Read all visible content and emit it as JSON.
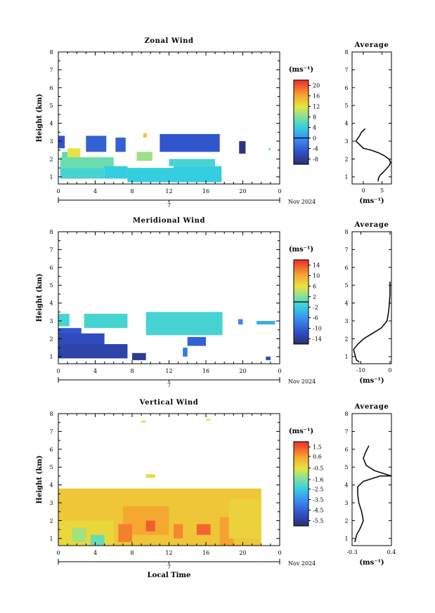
{
  "chart_data": [
    {
      "type": "heatmap",
      "title": "Zonal Wind",
      "ylabel": "Height (km)",
      "xlabel": "",
      "x_ticks": [
        "0",
        "4",
        "8",
        "12",
        "16",
        "20",
        "0"
      ],
      "xlim": [
        0,
        24
      ],
      "y_ticks": [
        "1",
        "2",
        "3",
        "4",
        "5",
        "6",
        "7",
        "8"
      ],
      "ylim": [
        0.6,
        8.0
      ],
      "date_label": "7",
      "month_label": "Nov 2024",
      "colorbar": {
        "unit": "(ms⁻¹)",
        "ticks": [
          "-8",
          "-4",
          "0",
          "4",
          "8",
          "12",
          "16",
          "20"
        ],
        "range": [
          -10,
          22
        ],
        "marker": 0
      },
      "cells": [
        {
          "x0": 0.0,
          "x1": 0.7,
          "y0": 2.6,
          "y1": 3.3,
          "value": -5
        },
        {
          "x0": 3.0,
          "x1": 5.2,
          "y0": 2.4,
          "y1": 3.3,
          "value": -4
        },
        {
          "x0": 6.2,
          "x1": 7.3,
          "y0": 2.4,
          "y1": 3.2,
          "value": -4
        },
        {
          "x0": 11.0,
          "x1": 17.5,
          "y0": 2.4,
          "y1": 3.4,
          "value": -5
        },
        {
          "x0": 19.6,
          "x1": 20.3,
          "y0": 2.3,
          "y1": 3.0,
          "value": -9
        },
        {
          "x0": 9.2,
          "x1": 9.6,
          "y0": 3.2,
          "y1": 3.45,
          "value": 14
        },
        {
          "x0": 22.8,
          "x1": 23.0,
          "y0": 2.5,
          "y1": 2.6,
          "value": 5
        },
        {
          "x0": 0.4,
          "x1": 1.0,
          "y0": 2.0,
          "y1": 2.4,
          "value": 6
        },
        {
          "x0": 1.0,
          "x1": 2.4,
          "y0": 2.0,
          "y1": 2.6,
          "value": 12
        },
        {
          "x0": 0.2,
          "x1": 6.0,
          "y0": 1.5,
          "y1": 2.1,
          "value": 7
        },
        {
          "x0": 0.2,
          "x1": 5.0,
          "y0": 0.9,
          "y1": 1.5,
          "value": 5
        },
        {
          "x0": 5.0,
          "x1": 7.5,
          "y0": 0.9,
          "y1": 1.6,
          "value": 4
        },
        {
          "x0": 8.5,
          "x1": 10.2,
          "y0": 1.9,
          "y1": 2.4,
          "value": 9
        },
        {
          "x0": 7.5,
          "x1": 12.5,
          "y0": 0.7,
          "y1": 1.5,
          "value": 4
        },
        {
          "x0": 12.5,
          "x1": 17.7,
          "y0": 0.7,
          "y1": 1.6,
          "value": 4
        },
        {
          "x0": 12.0,
          "x1": 17.0,
          "y0": 1.6,
          "y1": 2.0,
          "value": 5
        }
      ],
      "profile": {
        "title": "Average",
        "xlabel": "(ms⁻¹)",
        "x_ticks": [
          "0",
          "5"
        ],
        "xlim": [
          -3,
          7.5
        ],
        "points": [
          [
            0.5,
            3.7
          ],
          [
            -0.5,
            3.5
          ],
          [
            -1,
            3.3
          ],
          [
            -2.0,
            3.0
          ],
          [
            -1.2,
            2.85
          ],
          [
            0,
            2.6
          ],
          [
            2,
            2.5
          ],
          [
            4,
            2.35
          ],
          [
            5.5,
            2.2
          ],
          [
            6.8,
            2.0
          ],
          [
            7.3,
            1.8
          ],
          [
            6.8,
            1.6
          ],
          [
            5.5,
            1.3
          ],
          [
            4.5,
            1.1
          ],
          [
            4.0,
            0.9
          ],
          [
            4.0,
            0.75
          ]
        ]
      }
    },
    {
      "type": "heatmap",
      "title": "Meridional Wind",
      "ylabel": "Height (km)",
      "xlabel": "",
      "x_ticks": [
        "0",
        "4",
        "8",
        "12",
        "16",
        "20",
        "0"
      ],
      "xlim": [
        0,
        24
      ],
      "y_ticks": [
        "1",
        "2",
        "3",
        "4",
        "5",
        "6",
        "7",
        "8"
      ],
      "ylim": [
        0.6,
        8.0
      ],
      "date_label": "7",
      "month_label": "Nov 2024",
      "colorbar": {
        "unit": "(ms⁻¹)",
        "ticks": [
          "-14",
          "-10",
          "-6",
          "-2",
          "2",
          "6",
          "10",
          "14"
        ],
        "range": [
          -16,
          16
        ],
        "marker": 0
      },
      "cells": [
        {
          "x0": 0.0,
          "x1": 1.2,
          "y0": 2.7,
          "y1": 3.4,
          "value": -1
        },
        {
          "x0": 2.8,
          "x1": 7.5,
          "y0": 2.6,
          "y1": 3.4,
          "value": -1
        },
        {
          "x0": 9.5,
          "x1": 17.8,
          "y0": 2.2,
          "y1": 3.5,
          "value": -1
        },
        {
          "x0": 0.0,
          "x1": 2.5,
          "y0": 2.2,
          "y1": 2.6,
          "value": -11
        },
        {
          "x0": 0.0,
          "x1": 5.0,
          "y0": 1.6,
          "y1": 2.3,
          "value": -12
        },
        {
          "x0": 0.0,
          "x1": 7.5,
          "y0": 0.9,
          "y1": 1.7,
          "value": -13
        },
        {
          "x0": 8.0,
          "x1": 9.5,
          "y0": 0.8,
          "y1": 1.2,
          "value": -14
        },
        {
          "x0": 13.5,
          "x1": 14.0,
          "y0": 1.0,
          "y1": 1.5,
          "value": -8
        },
        {
          "x0": 14.0,
          "x1": 16.0,
          "y0": 1.6,
          "y1": 2.1,
          "value": -10
        },
        {
          "x0": 19.5,
          "x1": 20.0,
          "y0": 2.8,
          "y1": 3.1,
          "value": -7
        },
        {
          "x0": 21.5,
          "x1": 23.5,
          "y0": 2.8,
          "y1": 3.0,
          "value": -4
        },
        {
          "x0": 22.5,
          "x1": 23.0,
          "y0": 0.8,
          "y1": 1.0,
          "value": -12
        }
      ],
      "profile": {
        "title": "Average",
        "xlabel": "(ms⁻¹)",
        "x_ticks": [
          "-10",
          "0"
        ],
        "xlim": [
          -13,
          0.5
        ],
        "points": [
          [
            0,
            5.2
          ],
          [
            0,
            4.5
          ],
          [
            -0.2,
            4.0
          ],
          [
            -0.5,
            3.5
          ],
          [
            -1,
            3.0
          ],
          [
            -3,
            2.6
          ],
          [
            -6,
            2.3
          ],
          [
            -9,
            2.0
          ],
          [
            -11,
            1.7
          ],
          [
            -12.5,
            1.4
          ],
          [
            -12,
            1.1
          ],
          [
            -11.5,
            0.8
          ],
          [
            -10.5,
            0.7
          ]
        ]
      }
    },
    {
      "type": "heatmap",
      "title": "Vertical Wind",
      "ylabel": "Height (km)",
      "xlabel": "Local Time",
      "x_ticks": [
        "0",
        "4",
        "8",
        "12",
        "16",
        "20",
        "0"
      ],
      "xlim": [
        0,
        24
      ],
      "y_ticks": [
        "1",
        "2",
        "3",
        "4",
        "5",
        "6",
        "7",
        "8"
      ],
      "ylim": [
        0.6,
        8.0
      ],
      "date_label": "7",
      "month_label": "Nov 2024",
      "colorbar": {
        "unit": "(ms⁻¹)",
        "ticks": [
          "1.5",
          "0.6",
          "-0.5",
          "-1.6",
          "-2.5",
          "-3.5",
          "-4.5",
          "-5.5"
        ],
        "range": [
          -6,
          2
        ],
        "marker": null
      },
      "cells": [
        {
          "x0": 0.0,
          "x1": 22.0,
          "y0": 0.6,
          "y1": 3.8,
          "value": 0.0
        },
        {
          "x0": 0.0,
          "x1": 6.0,
          "y0": 0.6,
          "y1": 2.0,
          "value": -0.3
        },
        {
          "x0": 7.0,
          "x1": 12.0,
          "y0": 1.2,
          "y1": 2.8,
          "value": 0.5
        },
        {
          "x0": 1.5,
          "x1": 3.0,
          "y0": 0.8,
          "y1": 1.6,
          "value": -1.2
        },
        {
          "x0": 3.5,
          "x1": 5.0,
          "y0": 0.6,
          "y1": 1.2,
          "value": -1.8
        },
        {
          "x0": 6.5,
          "x1": 8.0,
          "y0": 0.8,
          "y1": 1.8,
          "value": 1.0
        },
        {
          "x0": 9.5,
          "x1": 10.5,
          "y0": 1.4,
          "y1": 2.0,
          "value": 1.4
        },
        {
          "x0": 12.5,
          "x1": 13.5,
          "y0": 1.0,
          "y1": 1.8,
          "value": 0.9
        },
        {
          "x0": 15.0,
          "x1": 16.5,
          "y0": 1.2,
          "y1": 1.8,
          "value": 1.3
        },
        {
          "x0": 17.5,
          "x1": 19.0,
          "y0": 0.6,
          "y1": 2.2,
          "value": 0.6
        },
        {
          "x0": 18.5,
          "x1": 22.0,
          "y0": 1.0,
          "y1": 3.2,
          "value": -0.2
        },
        {
          "x0": 9.5,
          "x1": 10.5,
          "y0": 4.4,
          "y1": 4.6,
          "value": -0.4
        },
        {
          "x0": 9.0,
          "x1": 9.5,
          "y0": 7.5,
          "y1": 7.6,
          "value": -0.8
        },
        {
          "x0": 16.0,
          "x1": 16.5,
          "y0": 7.6,
          "y1": 7.7,
          "value": -0.6
        }
      ],
      "profile": {
        "title": "Average",
        "xlabel": "(ms⁻¹)",
        "x_ticks": [
          "-0.3",
          "0.4"
        ],
        "xlim": [
          -0.3,
          0.4
        ],
        "points": [
          [
            -0.25,
            0.8
          ],
          [
            -0.22,
            1.2
          ],
          [
            -0.15,
            1.6
          ],
          [
            -0.1,
            2.0
          ],
          [
            -0.13,
            2.5
          ],
          [
            -0.18,
            3.0
          ],
          [
            -0.2,
            3.5
          ],
          [
            -0.2,
            3.9
          ],
          [
            -0.1,
            4.2
          ],
          [
            0.2,
            4.5
          ],
          [
            0.4,
            4.5
          ],
          [
            0.1,
            4.8
          ],
          [
            -0.05,
            5.1
          ],
          [
            -0.1,
            5.5
          ],
          [
            -0.05,
            5.9
          ],
          [
            0.0,
            6.2
          ]
        ]
      }
    }
  ]
}
